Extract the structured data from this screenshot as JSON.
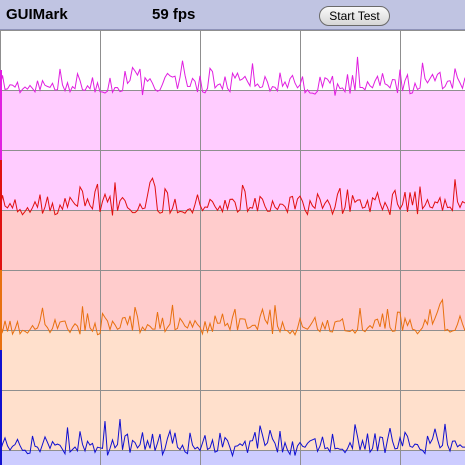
{
  "app": {
    "title": "GUIMark",
    "fps": "59 fps",
    "start_button": "Start Test"
  },
  "graph": {
    "background_colors": [
      "#ffccff",
      "#ffcccc",
      "#ffe0cc",
      "#ccccff"
    ],
    "series": [
      {
        "color": "#e020e0",
        "seed": 11
      },
      {
        "color": "#e01010",
        "seed": 23
      },
      {
        "color": "#e87010",
        "seed": 37
      },
      {
        "color": "#1010d0",
        "seed": 53
      }
    ]
  }
}
